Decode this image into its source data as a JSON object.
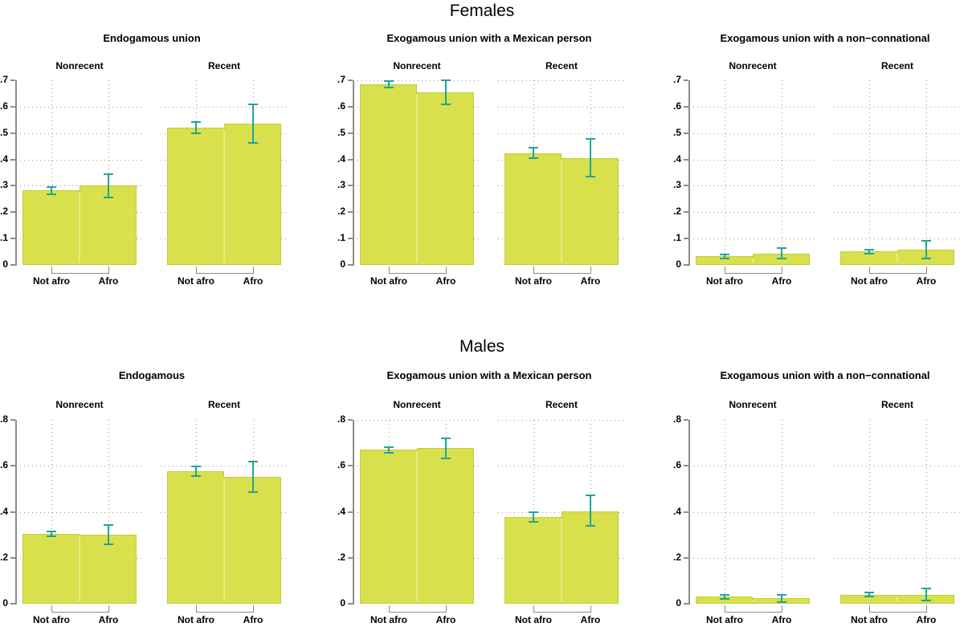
{
  "figure_title": "",
  "colors": {
    "bar_fill": "#d8e04c",
    "bar_border": "#c1cd3b",
    "bar_divider": "#e7ec86",
    "error_bar": "#22a39b",
    "axis": "#8c8c8c",
    "grid_dots": "#979797",
    "text": "#000000",
    "background": "#ffffff"
  },
  "chart_data": {
    "type": "bar",
    "grid": "dotted",
    "legend_position": "none",
    "rows": [
      {
        "title": "Females",
        "ylim": [
          0,
          0.7
        ],
        "ytick_values": [
          0,
          0.1,
          0.2,
          0.3,
          0.4,
          0.5,
          0.6,
          0.7
        ],
        "ytick_labels": [
          "0",
          ".1",
          ".2",
          ".3",
          ".4",
          ".5",
          ".6",
          ".7"
        ],
        "panels": [
          {
            "title": "Endogamous union",
            "gridline_values": [
              0.1,
              0.2,
              0.3,
              0.4,
              0.5,
              0.6
            ],
            "groups": [
              {
                "label": "Nonrecent",
                "bars": [
                  {
                    "category": "Not afro",
                    "value": 0.283,
                    "ci": [
                      0.269,
                      0.296
                    ]
                  },
                  {
                    "category": "Afro",
                    "value": 0.301,
                    "ci": [
                      0.256,
                      0.344
                    ]
                  }
                ]
              },
              {
                "label": "Recent",
                "bars": [
                  {
                    "category": "Not afro",
                    "value": 0.521,
                    "ci": [
                      0.5,
                      0.543
                    ]
                  },
                  {
                    "category": "Afro",
                    "value": 0.537,
                    "ci": [
                      0.464,
                      0.608
                    ]
                  }
                ]
              }
            ]
          },
          {
            "title": "Exogamous union with a Mexican person",
            "gridline_values": [
              0.1,
              0.2,
              0.3,
              0.4,
              0.5,
              0.6,
              0.7
            ],
            "groups": [
              {
                "label": "Nonrecent",
                "bars": [
                  {
                    "category": "Not afro",
                    "value": 0.685,
                    "ci": [
                      0.673,
                      0.697
                    ]
                  },
                  {
                    "category": "Afro",
                    "value": 0.654,
                    "ci": [
                      0.609,
                      0.701
                    ]
                  }
                ]
              },
              {
                "label": "Recent",
                "bars": [
                  {
                    "category": "Not afro",
                    "value": 0.424,
                    "ci": [
                      0.404,
                      0.445
                    ]
                  },
                  {
                    "category": "Afro",
                    "value": 0.405,
                    "ci": [
                      0.334,
                      0.477
                    ]
                  }
                ]
              }
            ]
          },
          {
            "title": "Exogamous union with a non−connational",
            "gridline_values": [
              0.1,
              0.2,
              0.3,
              0.4,
              0.5,
              0.6
            ],
            "groups": [
              {
                "label": "Nonrecent",
                "bars": [
                  {
                    "category": "Not afro",
                    "value": 0.032,
                    "ci": [
                      0.024,
                      0.041
                    ]
                  },
                  {
                    "category": "Afro",
                    "value": 0.044,
                    "ci": [
                      0.025,
                      0.063
                    ]
                  }
                ]
              },
              {
                "label": "Recent",
                "bars": [
                  {
                    "category": "Not afro",
                    "value": 0.051,
                    "ci": [
                      0.043,
                      0.059
                    ]
                  },
                  {
                    "category": "Afro",
                    "value": 0.058,
                    "ci": [
                      0.024,
                      0.091
                    ]
                  }
                ]
              }
            ]
          }
        ]
      },
      {
        "title": "Males",
        "ylim": [
          0,
          0.8
        ],
        "ytick_values": [
          0,
          0.2,
          0.4,
          0.6,
          0.8
        ],
        "ytick_labels": [
          "0",
          ".2",
          ".4",
          ".6",
          ".8"
        ],
        "panels": [
          {
            "title": "Endogamous",
            "gridline_values": [
              0.2,
              0.4,
              0.6
            ],
            "groups": [
              {
                "label": "Nonrecent",
                "bars": [
                  {
                    "category": "Not afro",
                    "value": 0.305,
                    "ci": [
                      0.294,
                      0.316
                    ]
                  },
                  {
                    "category": "Afro",
                    "value": 0.301,
                    "ci": [
                      0.259,
                      0.342
                    ]
                  }
                ]
              },
              {
                "label": "Recent",
                "bars": [
                  {
                    "category": "Not afro",
                    "value": 0.578,
                    "ci": [
                      0.557,
                      0.599
                    ]
                  },
                  {
                    "category": "Afro",
                    "value": 0.553,
                    "ci": [
                      0.487,
                      0.62
                    ]
                  }
                ]
              }
            ]
          },
          {
            "title": "Exogamous union with a Mexican person",
            "gridline_values": [
              0.2,
              0.4,
              0.6,
              0.8
            ],
            "groups": [
              {
                "label": "Nonrecent",
                "bars": [
                  {
                    "category": "Not afro",
                    "value": 0.669,
                    "ci": [
                      0.656,
                      0.68
                    ]
                  },
                  {
                    "category": "Afro",
                    "value": 0.676,
                    "ci": [
                      0.633,
                      0.718
                    ]
                  }
                ]
              },
              {
                "label": "Recent",
                "bars": [
                  {
                    "category": "Not afro",
                    "value": 0.379,
                    "ci": [
                      0.357,
                      0.4
                    ]
                  },
                  {
                    "category": "Afro",
                    "value": 0.403,
                    "ci": [
                      0.338,
                      0.47
                    ]
                  }
                ]
              }
            ]
          },
          {
            "title": "Exogamous union with a non−connational",
            "gridline_values": [
              0.2,
              0.4,
              0.6
            ],
            "groups": [
              {
                "label": "Nonrecent",
                "bars": [
                  {
                    "category": "Not afro",
                    "value": 0.03,
                    "ci": [
                      0.022,
                      0.038
                    ]
                  },
                  {
                    "category": "Afro",
                    "value": 0.023,
                    "ci": [
                      0.008,
                      0.04
                    ]
                  }
                ]
              },
              {
                "label": "Recent",
                "bars": [
                  {
                    "category": "Not afro",
                    "value": 0.04,
                    "ci": [
                      0.032,
                      0.049
                    ]
                  },
                  {
                    "category": "Afro",
                    "value": 0.04,
                    "ci": [
                      0.013,
                      0.068
                    ]
                  }
                ]
              }
            ]
          }
        ]
      }
    ]
  }
}
